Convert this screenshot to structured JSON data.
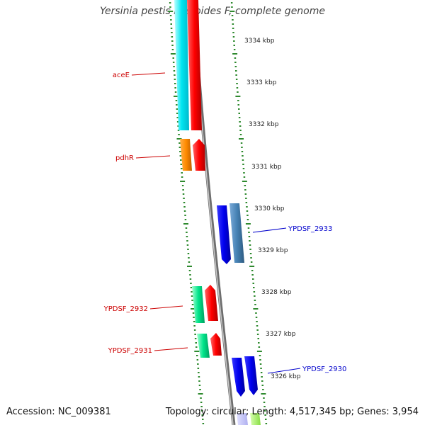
{
  "title": "Yersinia pestis Pestoides F, complete genome",
  "footer": {
    "accession": "Accession: NC_009381",
    "stats": "Topology: circular; Length: 4,517,345 bp; Genes: 3,954"
  },
  "colors": {
    "backbone": "#8a8a8a",
    "tick": "#2f8a2f",
    "forward_label": "#cc0000",
    "reverse_label": "#0000cc"
  },
  "ruler": {
    "unit": "kbp",
    "labels": [
      "3334 kbp",
      "3333 kbp",
      "3332 kbp",
      "3331 kbp",
      "3330 kbp",
      "3329 kbp",
      "3328 kbp",
      "3327 kbp",
      "3326 kbp"
    ]
  },
  "genes": [
    {
      "name": "aceE",
      "strand": "forward"
    },
    {
      "name": "pdhR",
      "strand": "forward"
    },
    {
      "name": "YPDSF_2933",
      "strand": "reverse"
    },
    {
      "name": "YPDSF_2932",
      "strand": "forward"
    },
    {
      "name": "YPDSF_2931",
      "strand": "forward"
    },
    {
      "name": "YPDSF_2930",
      "strand": "reverse"
    }
  ]
}
